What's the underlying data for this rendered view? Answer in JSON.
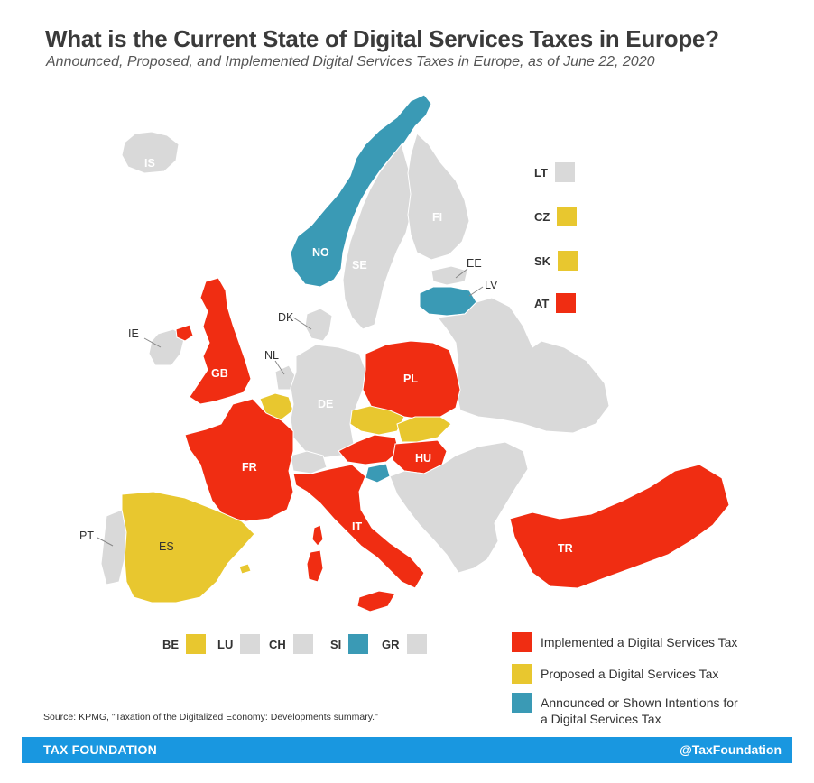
{
  "title": "What is the Current State of Digital Services Taxes in Europe?",
  "subtitle": "Announced, Proposed, and Implemented Digital Services Taxes in Europe, as of June 22, 2020",
  "colors": {
    "implemented": "#f02d12",
    "proposed": "#e8c72f",
    "announced": "#3a9ab5",
    "none": "#d9d9d9"
  },
  "map_labels": {
    "IS": "IS",
    "NO": "NO",
    "SE": "SE",
    "FI": "FI",
    "EE": "EE",
    "LV": "LV",
    "DK": "DK",
    "IE": "IE",
    "GB": "GB",
    "NL": "NL",
    "DE": "DE",
    "PL": "PL",
    "FR": "FR",
    "HU": "HU",
    "IT": "IT",
    "ES": "ES",
    "PT": "PT",
    "TR": "TR"
  },
  "side_legend": [
    {
      "code": "LT",
      "status": "none"
    },
    {
      "code": "CZ",
      "status": "proposed"
    },
    {
      "code": "SK",
      "status": "proposed"
    },
    {
      "code": "AT",
      "status": "implemented"
    }
  ],
  "bottom_legend": [
    {
      "code": "BE",
      "status": "proposed"
    },
    {
      "code": "LU",
      "status": "none"
    },
    {
      "code": "CH",
      "status": "none"
    },
    {
      "code": "SI",
      "status": "announced"
    },
    {
      "code": "GR",
      "status": "none"
    }
  ],
  "legend": [
    {
      "status": "implemented",
      "text": "Implemented a Digital Services Tax"
    },
    {
      "status": "proposed",
      "text": "Proposed a Digital Services Tax"
    },
    {
      "status": "announced",
      "text": "Announced or Shown Intentions for a Digital Services Tax"
    }
  ],
  "source": "Source: KPMG, \"Taxation of the Digitalized Economy: Developments summary.\"",
  "footer": {
    "left": "TAX FOUNDATION",
    "right": "@TaxFoundation"
  }
}
